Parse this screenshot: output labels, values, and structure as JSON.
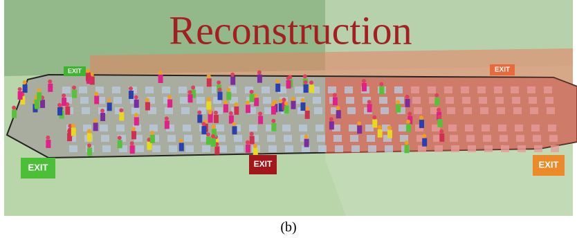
{
  "title": "Reconstruction",
  "exits": [
    "EXIT",
    "EXIT",
    "EXIT",
    "EXIT",
    "EXIT"
  ],
  "caption": "(b)"
}
